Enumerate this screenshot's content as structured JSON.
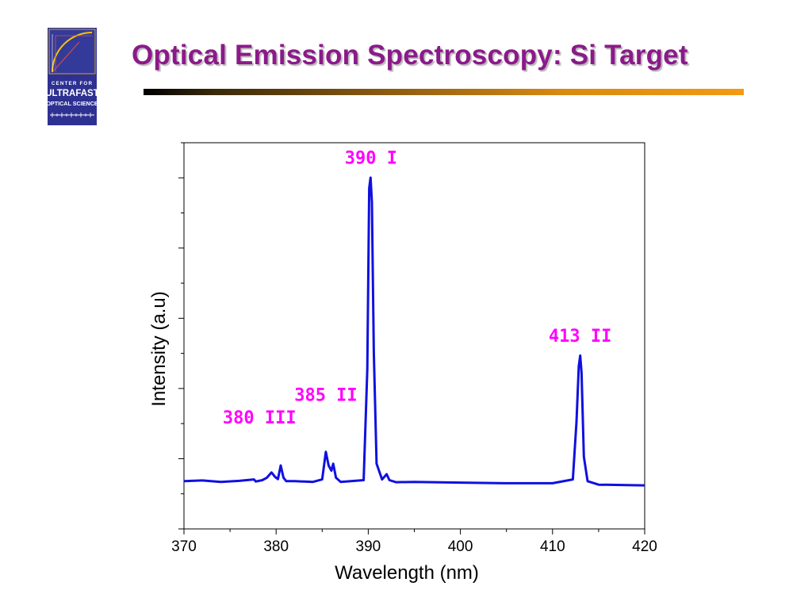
{
  "slide": {
    "title": "Optical Emission Spectroscopy: Si Target",
    "logo_text": [
      "CENTER FOR",
      "ULTRAFAST",
      "OPTICAL SCIENCE"
    ]
  },
  "colors": {
    "title": "#8B1A89",
    "rule_start": "#000000",
    "rule_end": "#F39A13",
    "series": "#1010E0",
    "annotations": "#FF00FF",
    "logo_bg": "#2E3192"
  },
  "chart_data": {
    "type": "line",
    "title": "",
    "xlabel": "Wavelength (nm)",
    "ylabel": "Intensity (a.u)",
    "xlim": [
      370,
      420
    ],
    "ylim": [
      0,
      1
    ],
    "xticks": [
      370,
      380,
      390,
      400,
      410,
      420
    ],
    "ytick_labels_shown": false,
    "grid": false,
    "legend": "none",
    "series": [
      {
        "x": [
          370,
          372,
          374,
          376,
          377.6,
          377.8,
          378.5,
          379.0,
          379.5,
          379.9,
          380.2,
          380.5,
          380.8,
          381.1,
          382,
          384,
          385.0,
          385.4,
          385.7,
          386.0,
          386.2,
          386.5,
          387,
          389.5,
          389.9,
          390.1,
          390.25,
          390.4,
          390.6,
          390.9,
          391.5,
          392.0,
          392.3,
          393,
          395,
          400,
          405,
          410,
          412.2,
          412.6,
          412.85,
          413.0,
          413.15,
          413.4,
          413.8,
          415,
          420
        ],
        "y": [
          0.13,
          0.132,
          0.128,
          0.131,
          0.135,
          0.129,
          0.133,
          0.14,
          0.155,
          0.142,
          0.136,
          0.175,
          0.14,
          0.13,
          0.13,
          0.128,
          0.135,
          0.214,
          0.175,
          0.16,
          0.18,
          0.14,
          0.128,
          0.133,
          0.45,
          0.97,
          1.0,
          0.93,
          0.5,
          0.18,
          0.135,
          0.15,
          0.133,
          0.127,
          0.128,
          0.126,
          0.124,
          0.124,
          0.135,
          0.3,
          0.46,
          0.49,
          0.44,
          0.2,
          0.13,
          0.12,
          0.118
        ]
      }
    ],
    "annotations": [
      {
        "text": "390 I",
        "x": 390.3,
        "y": 1.04
      },
      {
        "text": "413 II",
        "x": 413.0,
        "y": 0.53
      },
      {
        "text": "385 II",
        "x": 385.4,
        "y": 0.36
      },
      {
        "text": "380 III",
        "x": 378.2,
        "y": 0.295
      }
    ]
  }
}
